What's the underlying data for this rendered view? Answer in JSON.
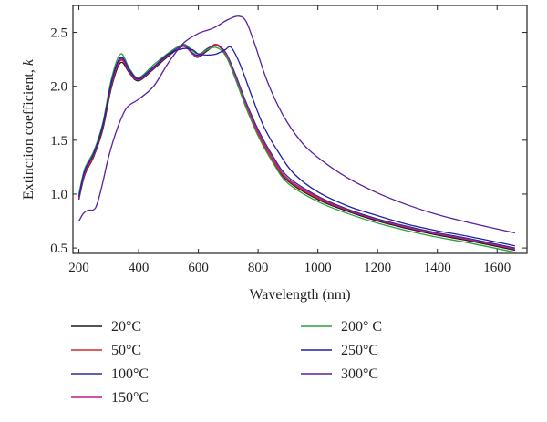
{
  "chart_data": {
    "type": "line",
    "xlabel": "Wavelength (nm)",
    "ylabel": "Extinction coefficient, ",
    "ylabel_symbol": "k",
    "xlim": [
      180,
      1700
    ],
    "ylim": [
      0.45,
      2.75
    ],
    "x_ticks": [
      200,
      400,
      600,
      800,
      1000,
      1200,
      1400,
      1600
    ],
    "y_ticks": [
      0.5,
      1.0,
      1.5,
      2.0,
      2.5
    ],
    "x_tick_labels": [
      "200",
      "400",
      "600",
      "800",
      "1000",
      "1200",
      "1400",
      "1600"
    ],
    "y_tick_labels": [
      "0.5",
      "1.0",
      "1.5",
      "2.0",
      "2.5"
    ],
    "grid": false,
    "legend_position": "below",
    "series": [
      {
        "name": "20°C",
        "color": "#1a1a1a",
        "points": [
          [
            200,
            0.95
          ],
          [
            220,
            1.18
          ],
          [
            250,
            1.35
          ],
          [
            280,
            1.6
          ],
          [
            310,
            2.0
          ],
          [
            340,
            2.22
          ],
          [
            370,
            2.12
          ],
          [
            400,
            2.05
          ],
          [
            450,
            2.16
          ],
          [
            500,
            2.28
          ],
          [
            550,
            2.37
          ],
          [
            580,
            2.3
          ],
          [
            600,
            2.27
          ],
          [
            630,
            2.33
          ],
          [
            660,
            2.38
          ],
          [
            690,
            2.3
          ],
          [
            720,
            2.1
          ],
          [
            760,
            1.8
          ],
          [
            800,
            1.55
          ],
          [
            850,
            1.3
          ],
          [
            900,
            1.12
          ],
          [
            1000,
            0.95
          ],
          [
            1100,
            0.84
          ],
          [
            1200,
            0.75
          ],
          [
            1300,
            0.68
          ],
          [
            1400,
            0.62
          ],
          [
            1500,
            0.57
          ],
          [
            1660,
            0.48
          ]
        ]
      },
      {
        "name": "50°C",
        "color": "#d62728",
        "points": [
          [
            200,
            0.96
          ],
          [
            220,
            1.19
          ],
          [
            250,
            1.36
          ],
          [
            280,
            1.62
          ],
          [
            310,
            2.02
          ],
          [
            340,
            2.24
          ],
          [
            370,
            2.13
          ],
          [
            400,
            2.06
          ],
          [
            450,
            2.17
          ],
          [
            500,
            2.29
          ],
          [
            550,
            2.38
          ],
          [
            580,
            2.31
          ],
          [
            600,
            2.28
          ],
          [
            630,
            2.34
          ],
          [
            660,
            2.39
          ],
          [
            690,
            2.31
          ],
          [
            720,
            2.11
          ],
          [
            760,
            1.81
          ],
          [
            800,
            1.56
          ],
          [
            850,
            1.31
          ],
          [
            900,
            1.13
          ],
          [
            1000,
            0.96
          ],
          [
            1100,
            0.85
          ],
          [
            1200,
            0.76
          ],
          [
            1300,
            0.69
          ],
          [
            1400,
            0.63
          ],
          [
            1500,
            0.58
          ],
          [
            1660,
            0.49
          ]
        ]
      },
      {
        "name": "100°C",
        "color": "#2b2e8c",
        "points": [
          [
            200,
            0.97
          ],
          [
            220,
            1.2
          ],
          [
            250,
            1.38
          ],
          [
            280,
            1.64
          ],
          [
            310,
            2.04
          ],
          [
            340,
            2.26
          ],
          [
            370,
            2.14
          ],
          [
            400,
            2.07
          ],
          [
            450,
            2.18
          ],
          [
            500,
            2.3
          ],
          [
            550,
            2.38
          ],
          [
            580,
            2.31
          ],
          [
            600,
            2.29
          ],
          [
            630,
            2.35
          ],
          [
            660,
            2.38
          ],
          [
            690,
            2.32
          ],
          [
            720,
            2.14
          ],
          [
            760,
            1.85
          ],
          [
            800,
            1.6
          ],
          [
            850,
            1.35
          ],
          [
            900,
            1.16
          ],
          [
            1000,
            0.98
          ],
          [
            1100,
            0.86
          ],
          [
            1200,
            0.77
          ],
          [
            1300,
            0.7
          ],
          [
            1400,
            0.64
          ],
          [
            1500,
            0.59
          ],
          [
            1660,
            0.5
          ]
        ]
      },
      {
        "name": "150°C",
        "color": "#c0198c",
        "points": [
          [
            200,
            0.97
          ],
          [
            220,
            1.2
          ],
          [
            250,
            1.37
          ],
          [
            280,
            1.63
          ],
          [
            310,
            2.03
          ],
          [
            340,
            2.25
          ],
          [
            370,
            2.13
          ],
          [
            400,
            2.06
          ],
          [
            450,
            2.17
          ],
          [
            500,
            2.29
          ],
          [
            550,
            2.37
          ],
          [
            580,
            2.3
          ],
          [
            600,
            2.28
          ],
          [
            630,
            2.34
          ],
          [
            660,
            2.38
          ],
          [
            690,
            2.31
          ],
          [
            720,
            2.12
          ],
          [
            760,
            1.83
          ],
          [
            800,
            1.58
          ],
          [
            850,
            1.33
          ],
          [
            900,
            1.14
          ],
          [
            1000,
            0.97
          ],
          [
            1100,
            0.85
          ],
          [
            1200,
            0.76
          ],
          [
            1300,
            0.69
          ],
          [
            1400,
            0.63
          ],
          [
            1500,
            0.58
          ],
          [
            1660,
            0.49
          ]
        ]
      },
      {
        "name": "200° C",
        "color": "#2e9e3e",
        "points": [
          [
            200,
            1.0
          ],
          [
            220,
            1.24
          ],
          [
            250,
            1.4
          ],
          [
            280,
            1.66
          ],
          [
            310,
            2.08
          ],
          [
            340,
            2.3
          ],
          [
            370,
            2.16
          ],
          [
            400,
            2.08
          ],
          [
            450,
            2.2
          ],
          [
            500,
            2.31
          ],
          [
            550,
            2.39
          ],
          [
            580,
            2.33
          ],
          [
            600,
            2.3
          ],
          [
            630,
            2.34
          ],
          [
            660,
            2.36
          ],
          [
            690,
            2.29
          ],
          [
            720,
            2.1
          ],
          [
            760,
            1.8
          ],
          [
            800,
            1.54
          ],
          [
            850,
            1.29
          ],
          [
            900,
            1.1
          ],
          [
            1000,
            0.93
          ],
          [
            1100,
            0.82
          ],
          [
            1200,
            0.73
          ],
          [
            1300,
            0.66
          ],
          [
            1400,
            0.6
          ],
          [
            1500,
            0.55
          ],
          [
            1660,
            0.46
          ]
        ]
      },
      {
        "name": "250°C",
        "color": "#1f1fa8",
        "points": [
          [
            200,
            0.98
          ],
          [
            220,
            1.22
          ],
          [
            250,
            1.38
          ],
          [
            280,
            1.64
          ],
          [
            310,
            2.05
          ],
          [
            340,
            2.27
          ],
          [
            370,
            2.15
          ],
          [
            400,
            2.07
          ],
          [
            450,
            2.18
          ],
          [
            500,
            2.3
          ],
          [
            550,
            2.35
          ],
          [
            580,
            2.34
          ],
          [
            600,
            2.3
          ],
          [
            630,
            2.29
          ],
          [
            660,
            2.3
          ],
          [
            690,
            2.34
          ],
          [
            710,
            2.36
          ],
          [
            740,
            2.2
          ],
          [
            780,
            1.9
          ],
          [
            820,
            1.62
          ],
          [
            870,
            1.38
          ],
          [
            920,
            1.19
          ],
          [
            1000,
            1.02
          ],
          [
            1100,
            0.89
          ],
          [
            1200,
            0.8
          ],
          [
            1300,
            0.72
          ],
          [
            1400,
            0.66
          ],
          [
            1500,
            0.61
          ],
          [
            1660,
            0.52
          ]
        ]
      },
      {
        "name": "300°C",
        "color": "#5a1f9e",
        "points": [
          [
            200,
            0.75
          ],
          [
            215,
            0.82
          ],
          [
            230,
            0.85
          ],
          [
            255,
            0.87
          ],
          [
            275,
            1.05
          ],
          [
            300,
            1.35
          ],
          [
            330,
            1.62
          ],
          [
            360,
            1.8
          ],
          [
            400,
            1.88
          ],
          [
            450,
            2.0
          ],
          [
            500,
            2.22
          ],
          [
            550,
            2.4
          ],
          [
            600,
            2.49
          ],
          [
            650,
            2.54
          ],
          [
            700,
            2.62
          ],
          [
            735,
            2.65
          ],
          [
            760,
            2.6
          ],
          [
            790,
            2.38
          ],
          [
            830,
            2.05
          ],
          [
            880,
            1.75
          ],
          [
            940,
            1.5
          ],
          [
            1000,
            1.34
          ],
          [
            1100,
            1.15
          ],
          [
            1200,
            1.01
          ],
          [
            1300,
            0.9
          ],
          [
            1400,
            0.81
          ],
          [
            1500,
            0.74
          ],
          [
            1660,
            0.64
          ]
        ]
      }
    ]
  }
}
